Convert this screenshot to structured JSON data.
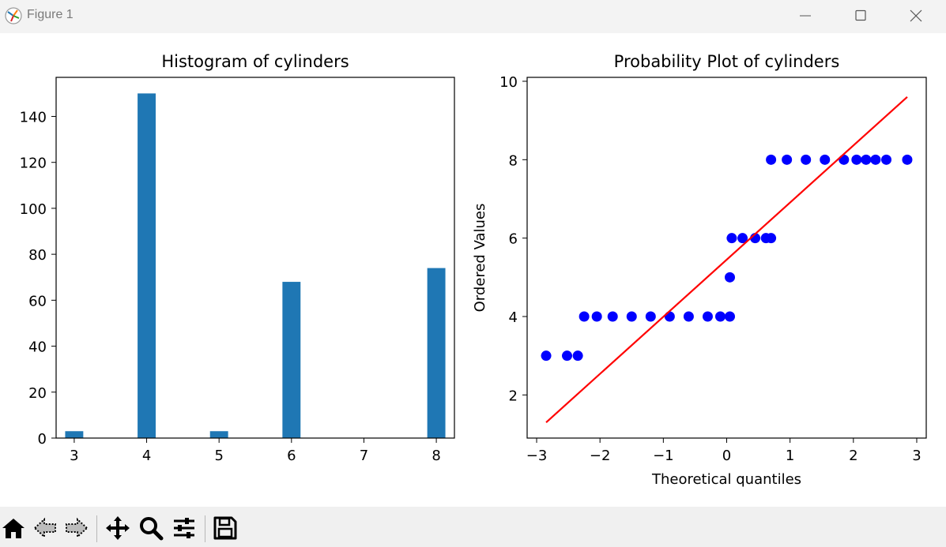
{
  "window": {
    "title": "Figure 1"
  },
  "toolbar": {
    "items": [
      "home-icon",
      "back-arrow-icon",
      "forward-arrow-icon",
      "pan-icon",
      "zoom-icon",
      "configure-subplots-icon",
      "save-icon"
    ]
  },
  "colors": {
    "bar": "#1f77b4",
    "points": "#0000ff",
    "fit_line": "#ff0000"
  },
  "chart_data": [
    {
      "type": "bar",
      "title": "Histogram of cylinders",
      "xlabel": "",
      "ylabel": "",
      "bins": [
        {
          "x": 3,
          "value": 3
        },
        {
          "x": 4,
          "value": 150
        },
        {
          "x": 5,
          "value": 3
        },
        {
          "x": 6,
          "value": 68
        },
        {
          "x": 8,
          "value": 74
        }
      ],
      "bin_width": 0.25,
      "xlim": [
        2.75,
        8.25
      ],
      "ylim": [
        0,
        157
      ],
      "xticks": [
        "3",
        "4",
        "5",
        "6",
        "7",
        "8"
      ],
      "yticks": [
        "0",
        "20",
        "40",
        "60",
        "80",
        "100",
        "120",
        "140"
      ],
      "grid": false
    },
    {
      "type": "scatter",
      "title": "Probability Plot of cylinders",
      "xlabel": "Theoretical quantiles",
      "ylabel": "Ordered Values",
      "points": [
        {
          "x": -2.85,
          "y": 3
        },
        {
          "x": -2.52,
          "y": 3
        },
        {
          "x": -2.35,
          "y": 3
        },
        {
          "x": -2.25,
          "y": 4
        },
        {
          "x": -2.05,
          "y": 4
        },
        {
          "x": -1.8,
          "y": 4
        },
        {
          "x": -1.5,
          "y": 4
        },
        {
          "x": -1.2,
          "y": 4
        },
        {
          "x": -0.9,
          "y": 4
        },
        {
          "x": -0.6,
          "y": 4
        },
        {
          "x": -0.3,
          "y": 4
        },
        {
          "x": -0.1,
          "y": 4
        },
        {
          "x": 0.05,
          "y": 4
        },
        {
          "x": 0.05,
          "y": 5
        },
        {
          "x": 0.08,
          "y": 6
        },
        {
          "x": 0.25,
          "y": 6
        },
        {
          "x": 0.45,
          "y": 6
        },
        {
          "x": 0.62,
          "y": 6
        },
        {
          "x": 0.7,
          "y": 6
        },
        {
          "x": 0.7,
          "y": 8
        },
        {
          "x": 0.95,
          "y": 8
        },
        {
          "x": 1.25,
          "y": 8
        },
        {
          "x": 1.55,
          "y": 8
        },
        {
          "x": 1.85,
          "y": 8
        },
        {
          "x": 2.05,
          "y": 8
        },
        {
          "x": 2.2,
          "y": 8
        },
        {
          "x": 2.35,
          "y": 8
        },
        {
          "x": 2.52,
          "y": 8
        },
        {
          "x": 2.85,
          "y": 8
        }
      ],
      "fit_line": [
        {
          "x": -2.85,
          "y": 1.3
        },
        {
          "x": 2.85,
          "y": 9.6
        }
      ],
      "xlim": [
        -3.15,
        3.15
      ],
      "ylim": [
        0.9,
        10.1
      ],
      "xticks": [
        {
          "v": -3,
          "label": "−3"
        },
        {
          "v": -2,
          "label": "−2"
        },
        {
          "v": -1,
          "label": "−1"
        },
        {
          "v": 0,
          "label": "0"
        },
        {
          "v": 1,
          "label": "1"
        },
        {
          "v": 2,
          "label": "2"
        },
        {
          "v": 3,
          "label": "3"
        }
      ],
      "yticks": [
        {
          "v": 2,
          "label": "2"
        },
        {
          "v": 4,
          "label": "4"
        },
        {
          "v": 6,
          "label": "6"
        },
        {
          "v": 8,
          "label": "8"
        },
        {
          "v": 10,
          "label": "10"
        }
      ],
      "grid": false
    }
  ]
}
